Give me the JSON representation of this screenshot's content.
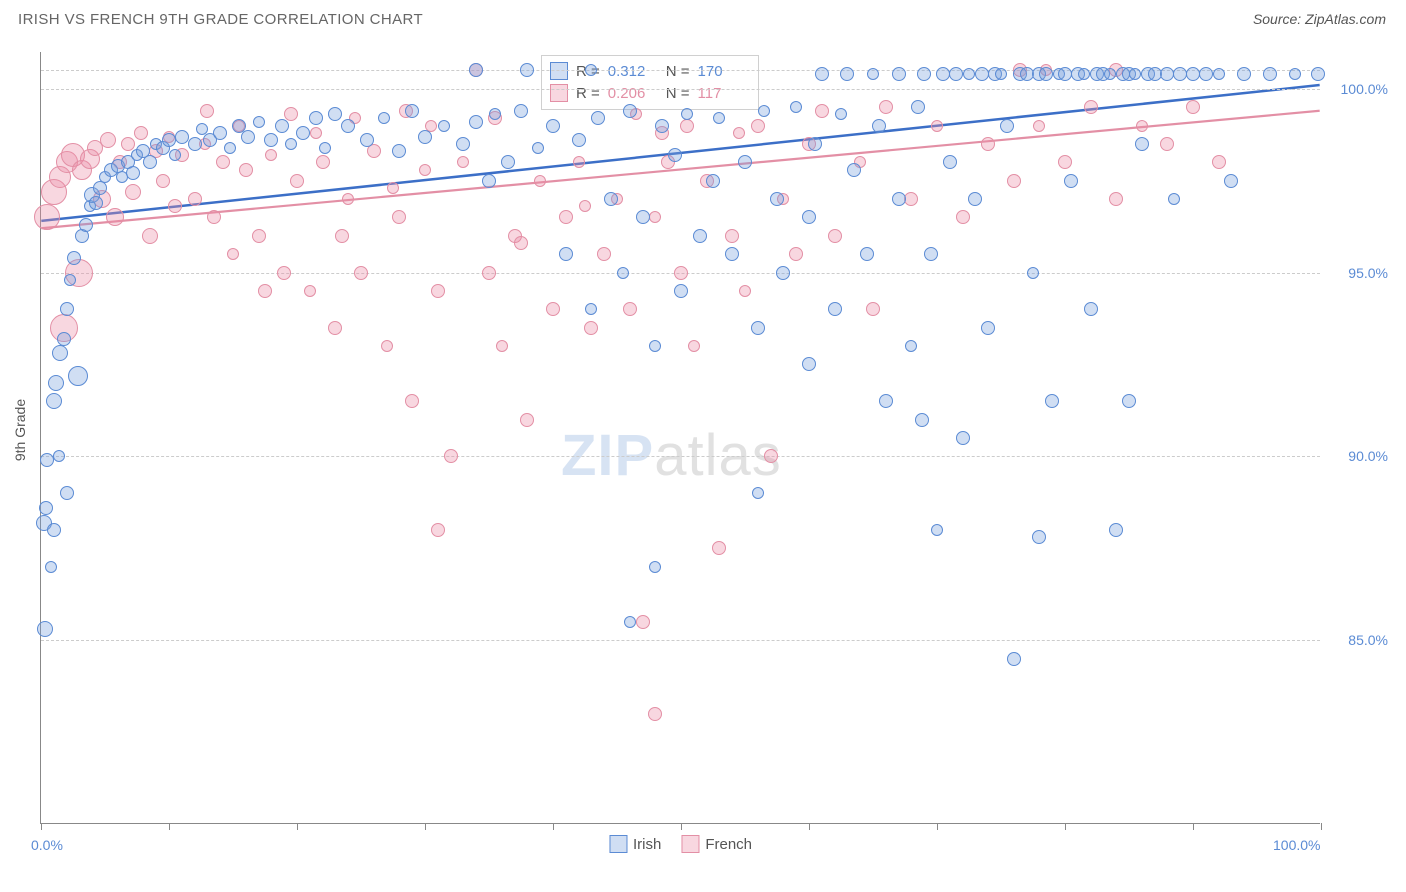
{
  "header": {
    "title": "IRISH VS FRENCH 9TH GRADE CORRELATION CHART",
    "source": "Source: ZipAtlas.com"
  },
  "watermark": {
    "left": "ZIP",
    "right": "atlas"
  },
  "chart": {
    "type": "scatter",
    "ylabel": "9th Grade",
    "background_color": "#ffffff",
    "grid_color": "#cccccc",
    "axis_color": "#888888",
    "xlim": [
      0,
      100
    ],
    "ylim": [
      80,
      101
    ],
    "xtick_positions": [
      0,
      10,
      20,
      30,
      40,
      50,
      60,
      70,
      80,
      90,
      100
    ],
    "xtick_labels": {
      "0": "0.0%",
      "100": "100.0%"
    },
    "ytick_positions": [
      85,
      90,
      95,
      100
    ],
    "ytick_labels": {
      "85": "85.0%",
      "90": "90.0%",
      "95": "95.0%",
      "100": "100.0%"
    },
    "series": [
      {
        "name": "Irish",
        "fill": "rgba(120,160,220,0.35)",
        "stroke": "#5b8bd4",
        "stat_color": "#5b8bd4",
        "r_value": "0.312",
        "n_value": "170",
        "trend": {
          "x1": 0,
          "y1": 96.4,
          "x2": 100,
          "y2": 100.1,
          "color": "#3c6fc7",
          "width": 2.5
        }
      },
      {
        "name": "French",
        "fill": "rgba(235,140,165,0.35)",
        "stroke": "#e38fa5",
        "stat_color": "#e38fa5",
        "r_value": "0.206",
        "n_value": "117",
        "trend": {
          "x1": 0,
          "y1": 96.2,
          "x2": 100,
          "y2": 99.4,
          "color": "#e38fa5",
          "width": 2.2
        }
      }
    ],
    "marker_default_size": 15,
    "points": {
      "Irish": [
        [
          0.3,
          85.3,
          16
        ],
        [
          0.2,
          88.2,
          16
        ],
        [
          0.4,
          88.6,
          14
        ],
        [
          0.5,
          89.9,
          14
        ],
        [
          1.0,
          91.5,
          16
        ],
        [
          1.2,
          92.0,
          16
        ],
        [
          1.4,
          90.0,
          12
        ],
        [
          1.5,
          92.8,
          16
        ],
        [
          1.8,
          93.2,
          14
        ],
        [
          2.0,
          94.0,
          14
        ],
        [
          2.3,
          94.8,
          12
        ],
        [
          2.6,
          95.4,
          14
        ],
        [
          2.9,
          92.2,
          20
        ],
        [
          3.2,
          96.0,
          14
        ],
        [
          3.5,
          96.3,
          14
        ],
        [
          3.8,
          96.8,
          12
        ],
        [
          4.0,
          97.1,
          16
        ],
        [
          4.3,
          96.9,
          14
        ],
        [
          4.6,
          97.3,
          14
        ],
        [
          5.0,
          97.6,
          12
        ],
        [
          5.5,
          97.8,
          14
        ],
        [
          6.0,
          97.9,
          14
        ],
        [
          6.3,
          97.6,
          12
        ],
        [
          6.8,
          98.0,
          14
        ],
        [
          7.2,
          97.7,
          14
        ],
        [
          7.5,
          98.2,
          12
        ],
        [
          8.0,
          98.3,
          14
        ],
        [
          8.5,
          98.0,
          14
        ],
        [
          9.0,
          98.5,
          12
        ],
        [
          9.5,
          98.4,
          14
        ],
        [
          10.0,
          98.6,
          14
        ],
        [
          10.5,
          98.2,
          12
        ],
        [
          11.0,
          98.7,
          14
        ],
        [
          12.0,
          98.5,
          14
        ],
        [
          12.6,
          98.9,
          12
        ],
        [
          13.2,
          98.6,
          14
        ],
        [
          14.0,
          98.8,
          14
        ],
        [
          14.8,
          98.4,
          12
        ],
        [
          15.5,
          99.0,
          14
        ],
        [
          16.2,
          98.7,
          14
        ],
        [
          17.0,
          99.1,
          12
        ],
        [
          18.0,
          98.6,
          14
        ],
        [
          18.8,
          99.0,
          14
        ],
        [
          19.5,
          98.5,
          12
        ],
        [
          20.5,
          98.8,
          14
        ],
        [
          21.5,
          99.2,
          14
        ],
        [
          22.2,
          98.4,
          12
        ],
        [
          23.0,
          99.3,
          14
        ],
        [
          24.0,
          99.0,
          14
        ],
        [
          25.5,
          98.6,
          14
        ],
        [
          26.8,
          99.2,
          12
        ],
        [
          28.0,
          98.3,
          14
        ],
        [
          29.0,
          99.4,
          14
        ],
        [
          30.0,
          98.7,
          14
        ],
        [
          31.5,
          99.0,
          12
        ],
        [
          33.0,
          98.5,
          14
        ],
        [
          34.0,
          99.1,
          14
        ],
        [
          35.0,
          97.5,
          14
        ],
        [
          35.5,
          99.3,
          12
        ],
        [
          36.5,
          98.0,
          14
        ],
        [
          37.5,
          99.4,
          14
        ],
        [
          38.8,
          98.4,
          12
        ],
        [
          40.0,
          99.0,
          14
        ],
        [
          41.0,
          95.5,
          14
        ],
        [
          42.0,
          98.6,
          14
        ],
        [
          43.0,
          94.0,
          12
        ],
        [
          43.5,
          99.2,
          14
        ],
        [
          44.5,
          97.0,
          14
        ],
        [
          45.5,
          95.0,
          12
        ],
        [
          46.0,
          99.4,
          14
        ],
        [
          47.0,
          96.5,
          14
        ],
        [
          48.0,
          93.0,
          12
        ],
        [
          48.5,
          99.0,
          14
        ],
        [
          49.5,
          98.2,
          14
        ],
        [
          50.0,
          94.5,
          14
        ],
        [
          50.5,
          99.3,
          12
        ],
        [
          51.5,
          96.0,
          14
        ],
        [
          52.5,
          97.5,
          14
        ],
        [
          53.0,
          99.2,
          12
        ],
        [
          54.0,
          95.5,
          14
        ],
        [
          55.0,
          98.0,
          14
        ],
        [
          56.0,
          93.5,
          14
        ],
        [
          56.5,
          99.4,
          12
        ],
        [
          57.5,
          97.0,
          14
        ],
        [
          58.0,
          95.0,
          14
        ],
        [
          59.0,
          99.5,
          12
        ],
        [
          60.0,
          96.5,
          14
        ],
        [
          60.5,
          98.5,
          14
        ],
        [
          61.0,
          100.4,
          14
        ],
        [
          62.0,
          94.0,
          14
        ],
        [
          62.5,
          99.3,
          12
        ],
        [
          63.0,
          100.4,
          14
        ],
        [
          63.5,
          97.8,
          14
        ],
        [
          64.5,
          95.5,
          14
        ],
        [
          65.0,
          100.4,
          12
        ],
        [
          65.5,
          99.0,
          14
        ],
        [
          66.0,
          91.5,
          14
        ],
        [
          67.0,
          100.4,
          14
        ],
        [
          67.0,
          97.0,
          14
        ],
        [
          68.0,
          93.0,
          12
        ],
        [
          68.5,
          99.5,
          14
        ],
        [
          69.0,
          100.4,
          14
        ],
        [
          69.5,
          95.5,
          14
        ],
        [
          70.0,
          88.0,
          12
        ],
        [
          70.5,
          100.4,
          14
        ],
        [
          71.0,
          98.0,
          14
        ],
        [
          71.5,
          100.4,
          14
        ],
        [
          72.0,
          90.5,
          14
        ],
        [
          72.5,
          100.4,
          12
        ],
        [
          73.0,
          97.0,
          14
        ],
        [
          73.5,
          100.4,
          14
        ],
        [
          74.0,
          93.5,
          14
        ],
        [
          74.5,
          100.4,
          14
        ],
        [
          75.0,
          100.4,
          12
        ],
        [
          75.5,
          99.0,
          14
        ],
        [
          76.0,
          84.5,
          14
        ],
        [
          76.5,
          100.4,
          14
        ],
        [
          77.0,
          100.4,
          14
        ],
        [
          77.5,
          95.0,
          12
        ],
        [
          78.0,
          100.4,
          14
        ],
        [
          78.5,
          100.4,
          14
        ],
        [
          79.0,
          91.5,
          14
        ],
        [
          79.5,
          100.4,
          12
        ],
        [
          80.0,
          100.4,
          14
        ],
        [
          80.5,
          97.5,
          14
        ],
        [
          81.0,
          100.4,
          14
        ],
        [
          81.5,
          100.4,
          12
        ],
        [
          82.0,
          94.0,
          14
        ],
        [
          82.5,
          100.4,
          14
        ],
        [
          83.0,
          100.4,
          14
        ],
        [
          83.5,
          100.4,
          12
        ],
        [
          84.0,
          88.0,
          14
        ],
        [
          84.5,
          100.4,
          14
        ],
        [
          85.0,
          100.4,
          14
        ],
        [
          85.5,
          100.4,
          12
        ],
        [
          86.0,
          98.5,
          14
        ],
        [
          86.5,
          100.4,
          14
        ],
        [
          87.0,
          100.4,
          14
        ],
        [
          88.0,
          100.4,
          14
        ],
        [
          88.5,
          97.0,
          12
        ],
        [
          89.0,
          100.4,
          14
        ],
        [
          90.0,
          100.4,
          14
        ],
        [
          91.0,
          100.4,
          14
        ],
        [
          92.0,
          100.4,
          12
        ],
        [
          93.0,
          97.5,
          14
        ],
        [
          94.0,
          100.4,
          14
        ],
        [
          96.0,
          100.4,
          14
        ],
        [
          98.0,
          100.4,
          12
        ],
        [
          99.8,
          100.4,
          14
        ],
        [
          2.0,
          89.0,
          14
        ],
        [
          1.0,
          88.0,
          14
        ],
        [
          0.8,
          87.0,
          12
        ],
        [
          34.0,
          100.5,
          14
        ],
        [
          38.0,
          100.5,
          14
        ],
        [
          43.0,
          100.5,
          12
        ],
        [
          48.0,
          87.0,
          12
        ],
        [
          46.0,
          85.5,
          12
        ],
        [
          78.0,
          87.8,
          14
        ],
        [
          85.0,
          91.5,
          14
        ],
        [
          68.8,
          91.0,
          14
        ],
        [
          60.0,
          92.5,
          14
        ],
        [
          56.0,
          89.0,
          12
        ]
      ],
      "French": [
        [
          0.5,
          96.5,
          26
        ],
        [
          1.0,
          97.2,
          26
        ],
        [
          1.5,
          97.6,
          22
        ],
        [
          1.8,
          93.5,
          28
        ],
        [
          2.0,
          98.0,
          22
        ],
        [
          2.5,
          98.2,
          24
        ],
        [
          3.0,
          95.0,
          28
        ],
        [
          3.2,
          97.8,
          20
        ],
        [
          3.8,
          98.1,
          20
        ],
        [
          4.2,
          98.4,
          16
        ],
        [
          4.8,
          97.0,
          18
        ],
        [
          5.2,
          98.6,
          16
        ],
        [
          5.8,
          96.5,
          18
        ],
        [
          6.2,
          98.0,
          14
        ],
        [
          6.8,
          98.5,
          14
        ],
        [
          7.2,
          97.2,
          16
        ],
        [
          7.8,
          98.8,
          14
        ],
        [
          8.5,
          96.0,
          16
        ],
        [
          9.0,
          98.3,
          14
        ],
        [
          9.5,
          97.5,
          14
        ],
        [
          10.0,
          98.7,
          12
        ],
        [
          10.5,
          96.8,
          14
        ],
        [
          11.0,
          98.2,
          14
        ],
        [
          12.0,
          97.0,
          14
        ],
        [
          12.8,
          98.5,
          12
        ],
        [
          13.5,
          96.5,
          14
        ],
        [
          14.2,
          98.0,
          14
        ],
        [
          15.0,
          95.5,
          12
        ],
        [
          16.0,
          97.8,
          14
        ],
        [
          17.0,
          96.0,
          14
        ],
        [
          18.0,
          98.2,
          12
        ],
        [
          19.0,
          95.0,
          14
        ],
        [
          20.0,
          97.5,
          14
        ],
        [
          21.0,
          94.5,
          12
        ],
        [
          22.0,
          98.0,
          14
        ],
        [
          23.0,
          93.5,
          14
        ],
        [
          24.0,
          97.0,
          12
        ],
        [
          25.0,
          95.0,
          14
        ],
        [
          26.0,
          98.3,
          14
        ],
        [
          27.0,
          93.0,
          12
        ],
        [
          28.0,
          96.5,
          14
        ],
        [
          29.0,
          91.5,
          14
        ],
        [
          30.0,
          97.8,
          12
        ],
        [
          31.0,
          94.5,
          14
        ],
        [
          32.0,
          90.0,
          14
        ],
        [
          33.0,
          98.0,
          12
        ],
        [
          34.0,
          100.5,
          14
        ],
        [
          35.0,
          95.0,
          14
        ],
        [
          36.0,
          93.0,
          12
        ],
        [
          37.0,
          96.0,
          14
        ],
        [
          38.0,
          91.0,
          14
        ],
        [
          39.0,
          97.5,
          12
        ],
        [
          40.0,
          94.0,
          14
        ],
        [
          41.0,
          96.5,
          14
        ],
        [
          42.0,
          98.0,
          12
        ],
        [
          43.0,
          93.5,
          14
        ],
        [
          44.0,
          95.5,
          14
        ],
        [
          45.0,
          97.0,
          12
        ],
        [
          46.0,
          94.0,
          14
        ],
        [
          47.0,
          85.5,
          14
        ],
        [
          48.0,
          83.0,
          14
        ],
        [
          48.0,
          96.5,
          12
        ],
        [
          49.0,
          98.0,
          14
        ],
        [
          50.0,
          95.0,
          14
        ],
        [
          51.0,
          93.0,
          12
        ],
        [
          52.0,
          97.5,
          14
        ],
        [
          53.0,
          87.5,
          14
        ],
        [
          54.0,
          96.0,
          14
        ],
        [
          55.0,
          94.5,
          12
        ],
        [
          56.0,
          99.0,
          14
        ],
        [
          57.0,
          90.0,
          14
        ],
        [
          58.0,
          97.0,
          12
        ],
        [
          59.0,
          95.5,
          14
        ],
        [
          60.0,
          98.5,
          14
        ],
        [
          62.0,
          96.0,
          14
        ],
        [
          64.0,
          98.0,
          12
        ],
        [
          65.0,
          94.0,
          14
        ],
        [
          66.0,
          99.5,
          14
        ],
        [
          68.0,
          97.0,
          14
        ],
        [
          70.0,
          99.0,
          12
        ],
        [
          72.0,
          96.5,
          14
        ],
        [
          74.0,
          98.5,
          14
        ],
        [
          76.0,
          97.5,
          14
        ],
        [
          78.0,
          99.0,
          12
        ],
        [
          80.0,
          98.0,
          14
        ],
        [
          82.0,
          99.5,
          14
        ],
        [
          84.0,
          97.0,
          14
        ],
        [
          86.0,
          99.0,
          12
        ],
        [
          88.0,
          98.5,
          14
        ],
        [
          90.0,
          99.5,
          14
        ],
        [
          92.0,
          98.0,
          14
        ],
        [
          76.5,
          100.5,
          14
        ],
        [
          78.5,
          100.5,
          12
        ],
        [
          84.0,
          100.5,
          14
        ],
        [
          48.5,
          98.8,
          14
        ],
        [
          21.5,
          98.8,
          12
        ],
        [
          17.5,
          94.5,
          14
        ],
        [
          23.5,
          96.0,
          14
        ],
        [
          27.5,
          97.3,
          12
        ],
        [
          37.5,
          95.8,
          14
        ],
        [
          42.5,
          96.8,
          12
        ],
        [
          31.0,
          88.0,
          14
        ],
        [
          13.0,
          99.4,
          14
        ],
        [
          15.5,
          99.0,
          12
        ],
        [
          19.5,
          99.3,
          14
        ],
        [
          24.5,
          99.2,
          12
        ],
        [
          28.5,
          99.4,
          14
        ],
        [
          30.5,
          99.0,
          12
        ],
        [
          35.5,
          99.2,
          14
        ],
        [
          46.5,
          99.3,
          12
        ],
        [
          50.5,
          99.0,
          14
        ],
        [
          54.5,
          98.8,
          12
        ],
        [
          61.0,
          99.4,
          14
        ]
      ]
    }
  }
}
